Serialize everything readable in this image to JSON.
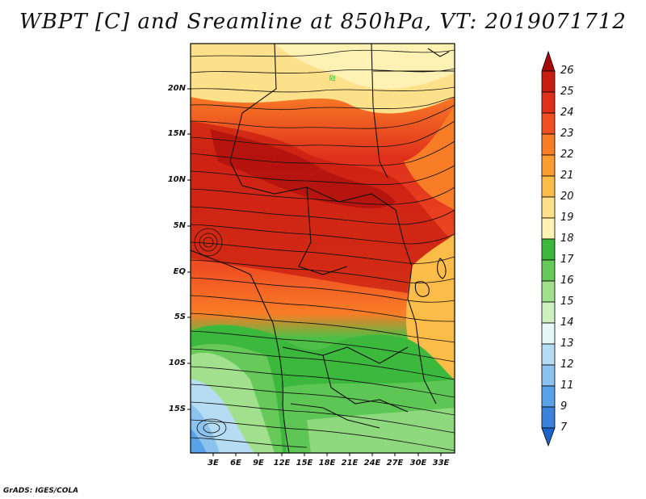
{
  "title": "WBPT [C] and Sreamline at 850hPa, VT: 2019071712",
  "credit": "GrADS: IGES/COLA",
  "lat_labels": [
    "20N",
    "15N",
    "10N",
    "5N",
    "EQ",
    "5S",
    "10S",
    "15S"
  ],
  "lon_labels": [
    "3E",
    "6E",
    "9E",
    "12E",
    "15E",
    "18E",
    "21E",
    "24E",
    "27E",
    "30E",
    "33E"
  ],
  "colorbar": {
    "labels": [
      "26",
      "25",
      "24",
      "23",
      "22",
      "21",
      "20",
      "19",
      "18",
      "17",
      "16",
      "15",
      "14",
      "13",
      "12",
      "11",
      "9",
      "7"
    ],
    "colors": [
      "#a50a0a",
      "#c81e12",
      "#e0301c",
      "#ef4f22",
      "#f97d26",
      "#fb9c2e",
      "#fcbd48",
      "#fde08a",
      "#fdf2b4",
      "#3cb83c",
      "#66c95a",
      "#a2e08e",
      "#ccf0c0",
      "#e6f7f7",
      "#b6dcf4",
      "#8cc2ee",
      "#5aa2e8",
      "#3a82dc",
      "#1e64c8"
    ]
  },
  "colors": {
    "frame": "#000000",
    "streamline": "#111111"
  }
}
